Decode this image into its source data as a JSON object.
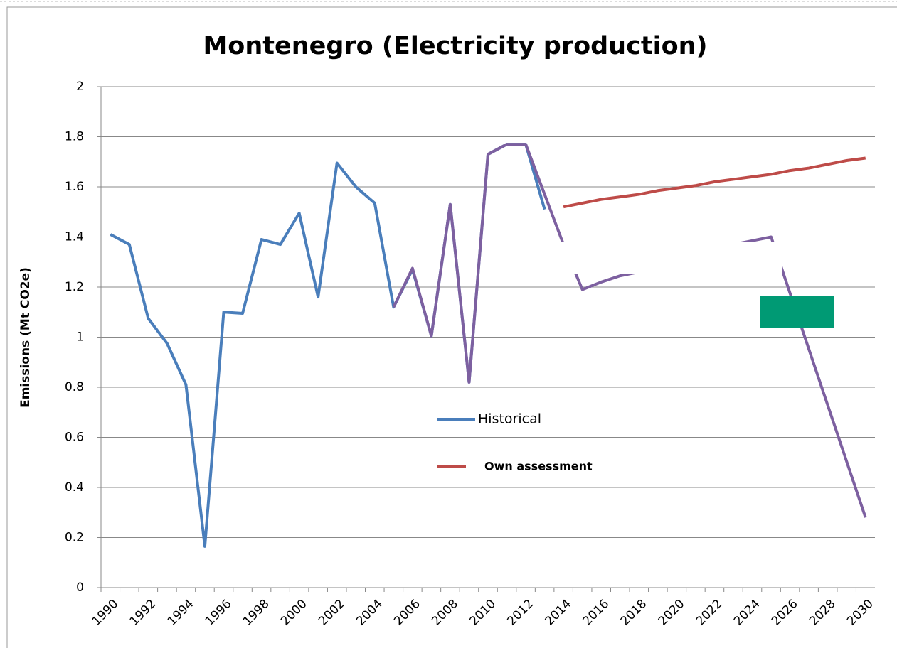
{
  "chart_data": {
    "type": "line",
    "title": "Montenegro (Electricity production)",
    "y_label": "Emissions (Mt CO2e)",
    "categories": [
      "1990",
      null,
      "1992",
      null,
      "1994",
      null,
      "1996",
      null,
      "1998",
      null,
      "2000",
      null,
      "2002",
      null,
      "2004",
      null,
      "2006",
      null,
      "2008",
      null,
      "2010",
      null,
      "2012",
      null,
      "2014",
      null,
      "2016",
      null,
      "2018",
      null,
      "2020",
      null,
      "2022",
      null,
      "2024",
      null,
      "2026",
      null,
      "2028",
      null,
      "2030"
    ],
    "series": [
      {
        "name": "Historical",
        "color": "#4a7ebb",
        "values": [
          1.41,
          1.37,
          1.075,
          0.975,
          0.81,
          0.165,
          1.1,
          1.095,
          1.39,
          1.37,
          1.495,
          1.16,
          1.695,
          1.6,
          1.535,
          1.12,
          1.27,
          1.005,
          1.53,
          0.82,
          1.73,
          1.77,
          1.77,
          1.51,
          null,
          null,
          null,
          null,
          null,
          null,
          null,
          null,
          null,
          null,
          null,
          null,
          null,
          null,
          null,
          null,
          null
        ]
      },
      {
        "name": "Own assessment",
        "color": "#be4b48",
        "values": [
          null,
          null,
          null,
          null,
          null,
          null,
          null,
          null,
          null,
          null,
          null,
          null,
          null,
          null,
          null,
          null,
          null,
          null,
          null,
          null,
          null,
          null,
          null,
          null,
          1.52,
          1.535,
          1.55,
          1.56,
          1.57,
          1.585,
          1.595,
          1.605,
          1.62,
          1.63,
          1.64,
          1.65,
          1.665,
          1.675,
          1.69,
          1.705,
          1.715
        ]
      },
      {
        "color": "#7d60a0",
        "values": [
          null,
          null,
          null,
          null,
          null,
          null,
          null,
          null,
          null,
          null,
          null,
          null,
          null,
          null,
          null,
          1.12,
          1.275,
          1.005,
          1.53,
          0.82,
          1.73,
          1.77,
          1.77,
          1.57,
          1.37,
          1.19,
          1.22,
          1.245,
          1.26,
          1.28,
          1.3,
          1.33,
          1.35,
          1.37,
          1.385,
          1.4,
          1.176,
          0.952,
          0.728,
          0.504,
          0.28
        ]
      }
    ],
    "ylim": [
      0,
      2
    ],
    "yticks": [
      0,
      0.2,
      0.4,
      0.6,
      0.8,
      1,
      1.2,
      1.4,
      1.6,
      1.8,
      2
    ],
    "grid": true
  }
}
